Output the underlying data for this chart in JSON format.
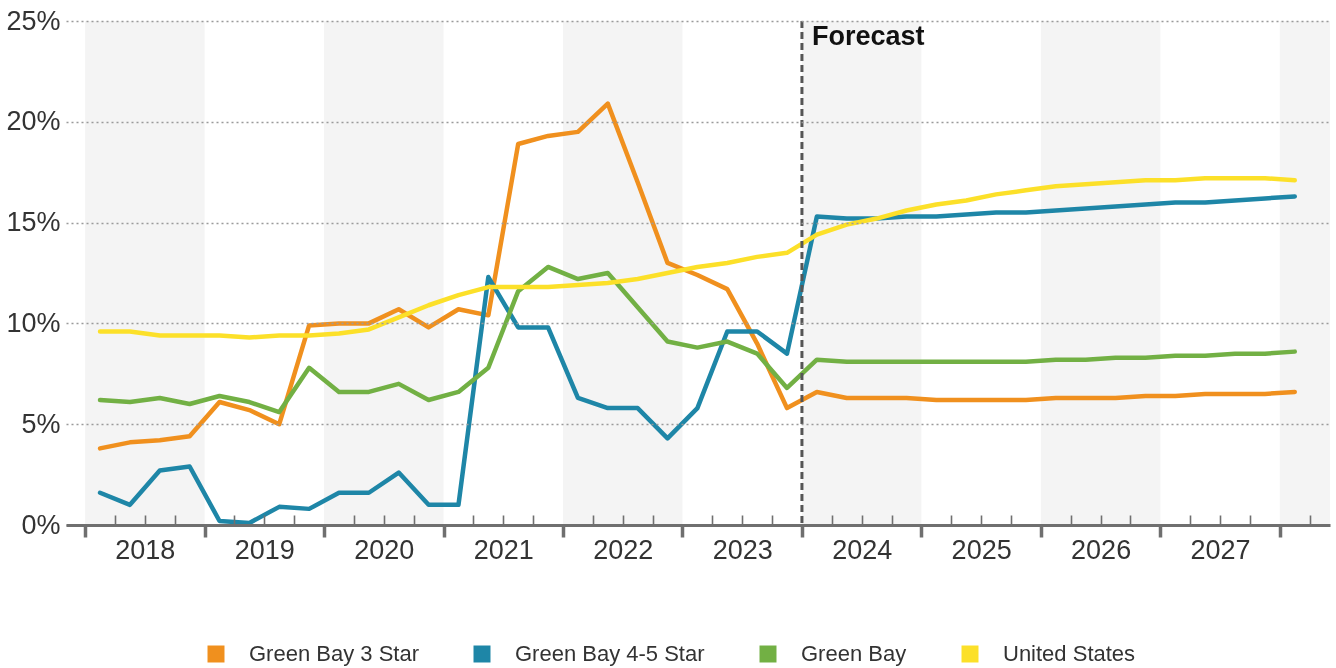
{
  "chart_data": {
    "type": "line",
    "x": [
      2018.125,
      2018.375,
      2018.625,
      2018.875,
      2019.125,
      2019.375,
      2019.625,
      2019.875,
      2020.125,
      2020.375,
      2020.625,
      2020.875,
      2021.125,
      2021.375,
      2021.625,
      2021.875,
      2022.125,
      2022.375,
      2022.625,
      2022.875,
      2023.125,
      2023.375,
      2023.625,
      2023.875,
      2024.125,
      2024.375,
      2024.625,
      2024.875,
      2025.125,
      2025.375,
      2025.625,
      2025.875,
      2026.125,
      2026.375,
      2026.625,
      2026.875,
      2027.125,
      2027.375,
      2027.625,
      2027.875,
      2028.125
    ],
    "series": [
      {
        "name": "Green Bay 3 Star",
        "color": "#f0901e",
        "values": [
          3.8,
          4.1,
          4.2,
          4.4,
          6.1,
          5.7,
          5.0,
          9.9,
          10.0,
          10.0,
          10.7,
          9.8,
          10.7,
          10.4,
          18.9,
          19.3,
          19.5,
          20.9,
          17.0,
          13.0,
          12.4,
          11.7,
          9.0,
          5.8,
          6.6,
          6.3,
          6.3,
          6.3,
          6.2,
          6.2,
          6.2,
          6.2,
          6.3,
          6.3,
          6.3,
          6.4,
          6.4,
          6.5,
          6.5,
          6.5,
          6.6
        ]
      },
      {
        "name": "Green Bay 4-5 Star",
        "color": "#1e86a7",
        "values": [
          1.6,
          1.0,
          2.7,
          2.9,
          0.2,
          0.1,
          0.9,
          0.8,
          1.6,
          1.6,
          2.6,
          1.0,
          1.0,
          12.3,
          9.8,
          9.8,
          6.3,
          5.8,
          5.8,
          4.3,
          5.8,
          9.6,
          9.6,
          8.5,
          15.3,
          15.2,
          15.2,
          15.3,
          15.3,
          15.4,
          15.5,
          15.5,
          15.6,
          15.7,
          15.8,
          15.9,
          16.0,
          16.0,
          16.1,
          16.2,
          16.3
        ]
      },
      {
        "name": "Green Bay",
        "color": "#72b044",
        "values": [
          6.2,
          6.1,
          6.3,
          6.0,
          6.4,
          6.1,
          5.6,
          7.8,
          6.6,
          6.6,
          7.0,
          6.2,
          6.6,
          7.8,
          11.6,
          12.8,
          12.2,
          12.5,
          10.8,
          9.1,
          8.8,
          9.1,
          8.5,
          6.8,
          8.2,
          8.1,
          8.1,
          8.1,
          8.1,
          8.1,
          8.1,
          8.1,
          8.2,
          8.2,
          8.3,
          8.3,
          8.4,
          8.4,
          8.5,
          8.5,
          8.6
        ]
      },
      {
        "name": "United States",
        "color": "#fce029",
        "values": [
          9.6,
          9.6,
          9.4,
          9.4,
          9.4,
          9.3,
          9.4,
          9.4,
          9.5,
          9.7,
          10.3,
          10.9,
          11.4,
          11.8,
          11.8,
          11.8,
          11.9,
          12.0,
          12.2,
          12.5,
          12.8,
          13.0,
          13.3,
          13.5,
          14.4,
          14.9,
          15.2,
          15.6,
          15.9,
          16.1,
          16.4,
          16.6,
          16.8,
          16.9,
          17.0,
          17.1,
          17.1,
          17.2,
          17.2,
          17.2,
          17.1
        ]
      }
    ],
    "xlim": [
      2017.84,
      2028.42
    ],
    "xticks": [
      {
        "value": 2018,
        "label": null
      },
      {
        "value": 2018.25,
        "label": null
      },
      {
        "value": 2018.5,
        "label": "2018"
      },
      {
        "value": 2018.75,
        "label": null
      },
      {
        "value": 2019,
        "label": null
      },
      {
        "value": 2019.25,
        "label": null
      },
      {
        "value": 2019.5,
        "label": "2019"
      },
      {
        "value": 2019.75,
        "label": null
      },
      {
        "value": 2020,
        "label": null
      },
      {
        "value": 2020.25,
        "label": null
      },
      {
        "value": 2020.5,
        "label": "2020"
      },
      {
        "value": 2020.75,
        "label": null
      },
      {
        "value": 2021,
        "label": null
      },
      {
        "value": 2021.25,
        "label": null
      },
      {
        "value": 2021.5,
        "label": "2021"
      },
      {
        "value": 2021.75,
        "label": null
      },
      {
        "value": 2022,
        "label": null
      },
      {
        "value": 2022.25,
        "label": null
      },
      {
        "value": 2022.5,
        "label": "2022"
      },
      {
        "value": 2022.75,
        "label": null
      },
      {
        "value": 2023,
        "label": null
      },
      {
        "value": 2023.25,
        "label": null
      },
      {
        "value": 2023.5,
        "label": "2023"
      },
      {
        "value": 2023.75,
        "label": null
      },
      {
        "value": 2024,
        "label": null
      },
      {
        "value": 2024.25,
        "label": null
      },
      {
        "value": 2024.5,
        "label": "2024"
      },
      {
        "value": 2024.75,
        "label": null
      },
      {
        "value": 2025,
        "label": null
      },
      {
        "value": 2025.25,
        "label": null
      },
      {
        "value": 2025.5,
        "label": "2025"
      },
      {
        "value": 2025.75,
        "label": null
      },
      {
        "value": 2026,
        "label": null
      },
      {
        "value": 2026.25,
        "label": null
      },
      {
        "value": 2026.5,
        "label": "2026"
      },
      {
        "value": 2026.75,
        "label": null
      },
      {
        "value": 2027,
        "label": null
      },
      {
        "value": 2027.25,
        "label": null
      },
      {
        "value": 2027.5,
        "label": "2027"
      },
      {
        "value": 2027.75,
        "label": null
      },
      {
        "value": 2028,
        "label": null
      },
      {
        "value": 2028.25,
        "label": null
      }
    ],
    "ylim": [
      0,
      25
    ],
    "yticks": [
      {
        "value": 0,
        "label": "0%"
      },
      {
        "value": 5,
        "label": "5%"
      },
      {
        "value": 10,
        "label": "10%"
      },
      {
        "value": 15,
        "label": "15%"
      },
      {
        "value": 20,
        "label": "20%"
      },
      {
        "value": 25,
        "label": "25%"
      }
    ],
    "grid": "y",
    "legend": "bottom",
    "ref_lines": [
      {
        "axis": "x",
        "value": 2024,
        "label": "Forecast",
        "color": "#555555",
        "line_style": "dashed"
      }
    ],
    "bands": [
      {
        "axis": "x",
        "from": 2018,
        "to": 2019,
        "color": "#f4f4f4"
      },
      {
        "axis": "x",
        "from": 2020,
        "to": 2021,
        "color": "#f4f4f4"
      },
      {
        "axis": "x",
        "from": 2022,
        "to": 2023,
        "color": "#f4f4f4"
      },
      {
        "axis": "x",
        "from": 2024,
        "to": 2025,
        "color": "#f4f4f4"
      },
      {
        "axis": "x",
        "from": 2026,
        "to": 2027,
        "color": "#f4f4f4"
      },
      {
        "axis": "x",
        "from": 2028,
        "to": 2028.42,
        "color": "#f4f4f4"
      }
    ]
  }
}
